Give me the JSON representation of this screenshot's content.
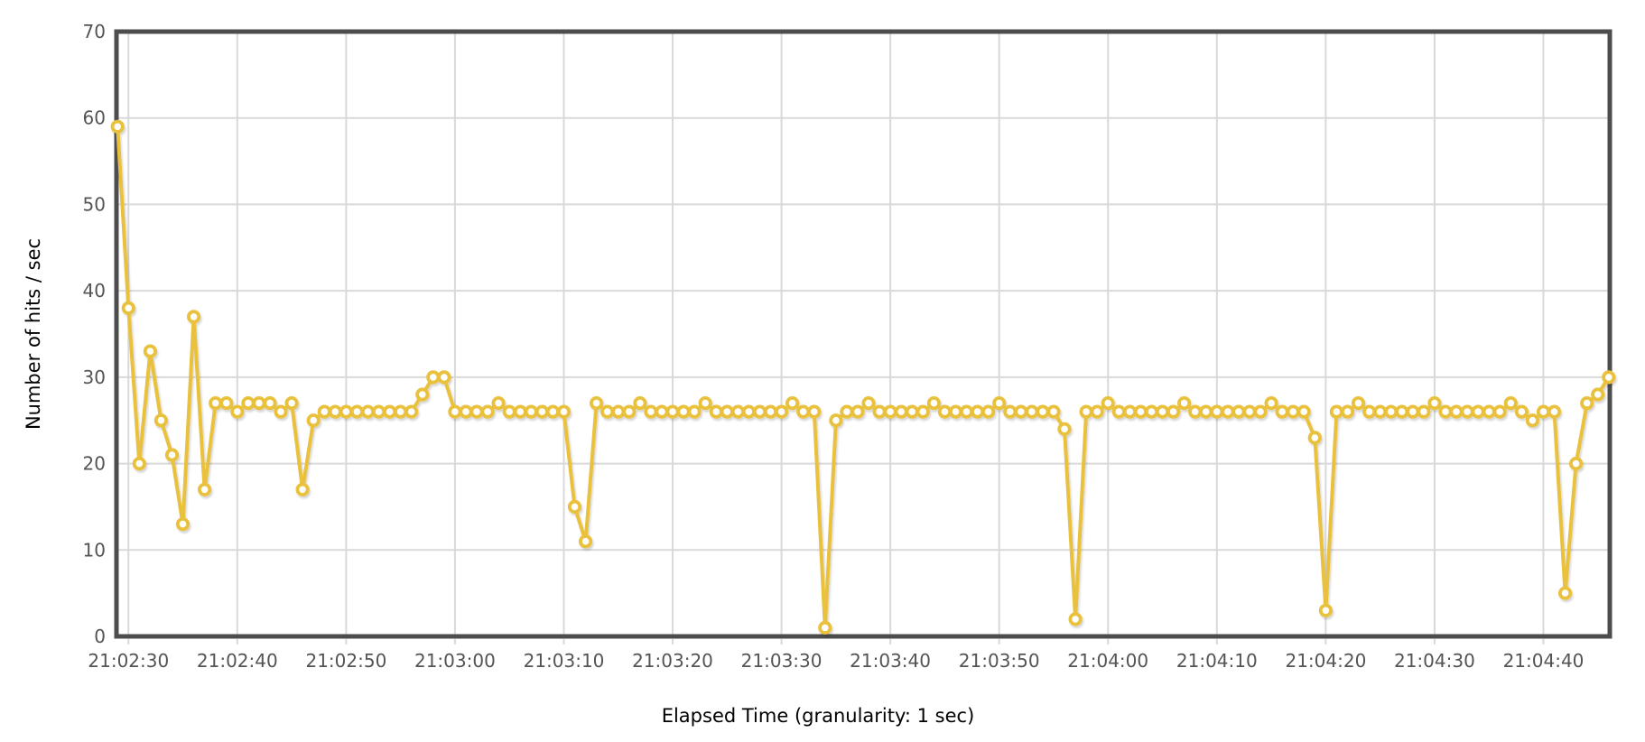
{
  "chart_data": {
    "type": "line",
    "title": "",
    "xlabel": "Elapsed Time (granularity: 1 sec)",
    "ylabel": "Number of hits / sec",
    "legend": null,
    "grid": true,
    "series_name": "hits-per-second",
    "series_color": "#E9C13D",
    "marker_fill": "#ffffff",
    "frame_color": "#4D4D4D",
    "grid_color": "#D9D9D9",
    "tick_text_color": "#545454",
    "ylim": [
      0,
      70
    ],
    "y_ticks": [
      0,
      10,
      20,
      30,
      40,
      50,
      60,
      70
    ],
    "xlim_seconds": [
      28.9,
      166.1
    ],
    "x_ticks": [
      30,
      40,
      50,
      60,
      70,
      80,
      90,
      100,
      110,
      120,
      130,
      140,
      150,
      160
    ],
    "x_tick_labels": [
      "21:02:30",
      "21:02:40",
      "21:02:50",
      "21:03:00",
      "21:03:10",
      "21:03:20",
      "21:03:30",
      "21:03:40",
      "21:03:50",
      "21:04:00",
      "21:04:10",
      "21:04:20",
      "21:04:30",
      "21:04:40"
    ],
    "x_start_seconds": 29,
    "x_interval_seconds": 1,
    "values": [
      59,
      38,
      20,
      33,
      25,
      21,
      13,
      37,
      17,
      27,
      27,
      26,
      27,
      27,
      27,
      26,
      27,
      17,
      25,
      26,
      26,
      26,
      26,
      26,
      26,
      26,
      26,
      26,
      28,
      30,
      30,
      26,
      26,
      26,
      26,
      27,
      26,
      26,
      26,
      26,
      26,
      26,
      15,
      11,
      27,
      26,
      26,
      26,
      27,
      26,
      26,
      26,
      26,
      26,
      27,
      26,
      26,
      26,
      26,
      26,
      26,
      26,
      27,
      26,
      26,
      1,
      25,
      26,
      26,
      27,
      26,
      26,
      26,
      26,
      26,
      27,
      26,
      26,
      26,
      26,
      26,
      27,
      26,
      26,
      26,
      26,
      26,
      24,
      2,
      26,
      26,
      27,
      26,
      26,
      26,
      26,
      26,
      26,
      27,
      26,
      26,
      26,
      26,
      26,
      26,
      26,
      27,
      26,
      26,
      26,
      23,
      3,
      26,
      26,
      27,
      26,
      26,
      26,
      26,
      26,
      26,
      27,
      26,
      26,
      26,
      26,
      26,
      26,
      27,
      26,
      25,
      26,
      26,
      5,
      20,
      27,
      28,
      30
    ]
  }
}
